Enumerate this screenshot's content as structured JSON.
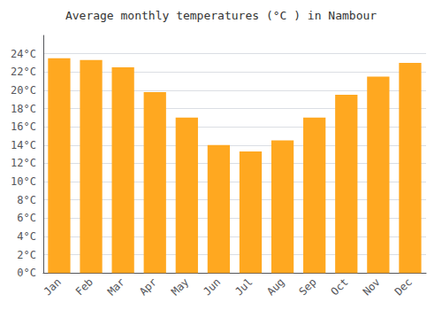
{
  "chart_data": {
    "type": "bar",
    "title": "Average monthly temperatures (°C ) in Nambour",
    "categories": [
      "Jan",
      "Feb",
      "Mar",
      "Apr",
      "May",
      "Jun",
      "Jul",
      "Aug",
      "Sep",
      "Oct",
      "Nov",
      "Dec"
    ],
    "values": [
      23.5,
      23.3,
      22.5,
      19.8,
      17.0,
      14.0,
      13.3,
      14.5,
      17.0,
      19.5,
      21.5,
      23.0
    ],
    "color": "#FFA820",
    "ylim": [
      0,
      26
    ],
    "yticks": [
      {
        "value": 0,
        "label": "0°C"
      },
      {
        "value": 2,
        "label": "2°C"
      },
      {
        "value": 4,
        "label": "4°C"
      },
      {
        "value": 6,
        "label": "6°C"
      },
      {
        "value": 8,
        "label": "8°C"
      },
      {
        "value": 10,
        "label": "10°C"
      },
      {
        "value": 12,
        "label": "12°C"
      },
      {
        "value": 14,
        "label": "14°C"
      },
      {
        "value": 16,
        "label": "16°C"
      },
      {
        "value": 18,
        "label": "18°C"
      },
      {
        "value": 20,
        "label": "20°C"
      },
      {
        "value": 22,
        "label": "22°C"
      },
      {
        "value": 24,
        "label": "24°C"
      }
    ],
    "grid": true
  }
}
